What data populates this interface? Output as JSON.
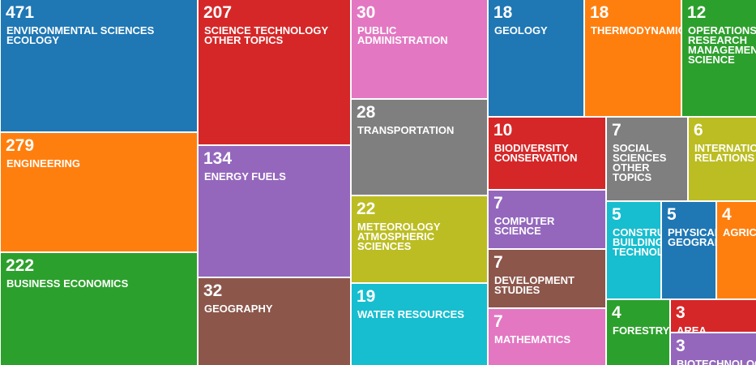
{
  "chart_data": {
    "type": "treemap",
    "items": [
      {
        "label": "ENVIRONMENTAL SCIENCES ECOLOGY",
        "value": 471,
        "color": "#1f77b4"
      },
      {
        "label": "ENGINEERING",
        "value": 279,
        "color": "#ff7f0e"
      },
      {
        "label": "BUSINESS ECONOMICS",
        "value": 222,
        "color": "#2ca02c"
      },
      {
        "label": "SCIENCE TECHNOLOGY OTHER TOPICS",
        "value": 207,
        "color": "#d62728"
      },
      {
        "label": "ENERGY FUELS",
        "value": 134,
        "color": "#9467bd"
      },
      {
        "label": "GEOGRAPHY",
        "value": 32,
        "color": "#8c564b"
      },
      {
        "label": "PUBLIC ADMINISTRATION",
        "value": 30,
        "color": "#e377c2"
      },
      {
        "label": "TRANSPORTATION",
        "value": 28,
        "color": "#7f7f7f"
      },
      {
        "label": "METEOROLOGY ATMOSPHERIC SCIENCES",
        "value": 22,
        "color": "#bcbd22"
      },
      {
        "label": "WATER RESOURCES",
        "value": 19,
        "color": "#17becf"
      },
      {
        "label": "GEOLOGY",
        "value": 18,
        "color": "#1f77b4"
      },
      {
        "label": "THERMODYNAMICS",
        "value": 18,
        "color": "#ff7f0e"
      },
      {
        "label": "OPERATIONS RESEARCH MANAGEMENT SCIENCE",
        "value": 12,
        "color": "#2ca02c"
      },
      {
        "label": "BIODIVERSITY CONSERVATION",
        "value": 10,
        "color": "#d62728"
      },
      {
        "label": "COMPUTER SCIENCE",
        "value": 7,
        "color": "#9467bd"
      },
      {
        "label": "DEVELOPMENT STUDIES",
        "value": 7,
        "color": "#8c564b"
      },
      {
        "label": "MATHEMATICS",
        "value": 7,
        "color": "#e377c2"
      },
      {
        "label": "SOCIAL SCIENCES OTHER TOPICS",
        "value": 7,
        "color": "#7f7f7f"
      },
      {
        "label": "INTERNATIONAL RELATIONS",
        "value": 6,
        "color": "#bcbd22"
      },
      {
        "label": "CONSTRUCTION BUILDING TECHNOLOGY",
        "value": 5,
        "color": "#17becf"
      },
      {
        "label": "PHYSICAL GEOGRAPHY",
        "value": 5,
        "color": "#1f77b4"
      },
      {
        "label": "AGRICULTURE",
        "value": 4,
        "color": "#ff7f0e"
      },
      {
        "label": "FORESTRY",
        "value": 4,
        "color": "#2ca02c"
      },
      {
        "label": "AREA STUDIES",
        "value": 3,
        "color": "#d62728"
      },
      {
        "label": "BIOTECHNOLOGY",
        "value": 3,
        "color": "#9467bd"
      }
    ]
  }
}
